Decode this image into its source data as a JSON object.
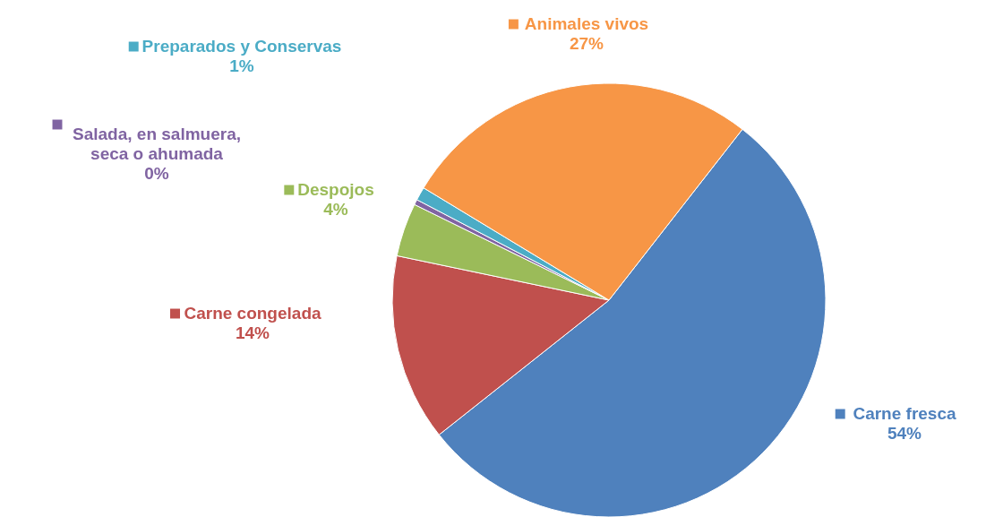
{
  "chart_data": {
    "type": "pie",
    "categories": [
      "Carne fresca",
      "Carne congelada",
      "Despojos",
      "Salada, en salmuera, seca o ahumada",
      "Preparados y Conservas",
      "Animales vivos"
    ],
    "values": [
      54,
      14,
      4,
      0.4,
      1,
      27
    ],
    "value_labels": [
      "54%",
      "14%",
      "4%",
      "0%",
      "1%",
      "27%"
    ],
    "colors": [
      "#4f81bd",
      "#c0504d",
      "#9bbb59",
      "#8064a2",
      "#4bacc6",
      "#f79646"
    ],
    "legend": "left"
  }
}
